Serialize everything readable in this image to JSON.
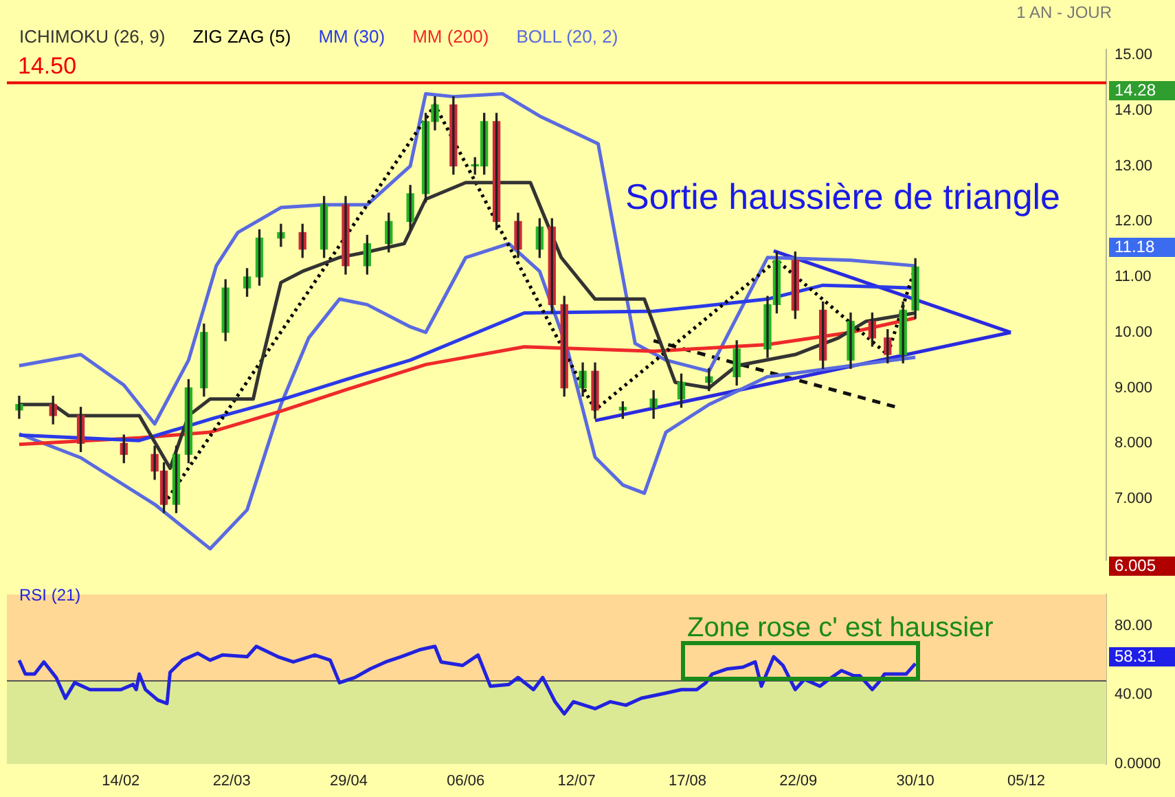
{
  "chart_data": [
    {
      "type": "candlestick",
      "subtitle": "1 AN - JOUR",
      "legend": "top left",
      "tick_labels": "y",
      "xlim": [
        "--01-08",
        "--12-31"
      ],
      "ylim": [
        5.9,
        15.1
      ],
      "yticks": [
        {
          "value": 7,
          "label": "7.000"
        },
        {
          "value": 8,
          "label": "8.000"
        },
        {
          "value": 9,
          "label": "9.000"
        },
        {
          "value": 10,
          "label": "10.00"
        },
        {
          "value": 11,
          "label": "11.00"
        },
        {
          "value": 12,
          "label": "12.00"
        },
        {
          "value": 13,
          "label": "13.00"
        },
        {
          "value": 14,
          "label": "14.00"
        },
        {
          "value": 15,
          "label": "15.00"
        }
      ],
      "x": [
        "--01-12",
        "--01-23",
        "--02-01",
        "--02-15",
        "--02-25",
        "--02-28",
        "--03-04",
        "--03-08",
        "--03-13",
        "--03-20",
        "--03-27",
        "--03-31",
        "--04-07",
        "--04-14",
        "--04-21",
        "--04-28",
        "--05-05",
        "--05-12",
        "--05-19",
        "--05-24",
        "--05-27",
        "--06-02",
        "--06-09",
        "--06-12",
        "--06-16",
        "--06-23",
        "--06-30",
        "--07-04",
        "--07-08",
        "--07-14",
        "--07-18",
        "--07-27",
        "--08-06",
        "--08-15",
        "--08-24",
        "--09-02",
        "--09-12",
        "--09-15",
        "--09-21",
        "--09-30",
        "--10-09",
        "--10-16",
        "--10-21",
        "--10-26",
        "--10-30"
      ],
      "ohlc": [
        [
          8.6,
          8.85,
          8.45,
          8.7
        ],
        [
          8.7,
          8.85,
          8.35,
          8.5
        ],
        [
          8.5,
          8.65,
          7.85,
          8.0
        ],
        [
          8.0,
          8.15,
          7.65,
          7.8
        ],
        [
          7.8,
          7.95,
          7.35,
          7.5
        ],
        [
          7.5,
          7.65,
          6.75,
          6.9
        ],
        [
          6.9,
          7.95,
          6.75,
          7.8
        ],
        [
          7.8,
          9.15,
          7.65,
          9.0
        ],
        [
          9.0,
          10.15,
          8.85,
          10.0
        ],
        [
          10.0,
          10.95,
          9.85,
          10.8
        ],
        [
          10.8,
          11.15,
          10.65,
          11.0
        ],
        [
          11.0,
          11.85,
          10.85,
          11.7
        ],
        [
          11.7,
          11.95,
          11.55,
          11.8
        ],
        [
          11.8,
          11.95,
          11.35,
          11.5
        ],
        [
          11.5,
          12.45,
          11.35,
          12.3
        ],
        [
          12.3,
          12.45,
          11.05,
          11.2
        ],
        [
          11.2,
          11.75,
          11.05,
          11.6
        ],
        [
          11.6,
          12.15,
          11.45,
          12.0
        ],
        [
          12.0,
          12.65,
          11.85,
          12.5
        ],
        [
          12.5,
          13.95,
          12.35,
          13.8
        ],
        [
          13.8,
          14.25,
          13.65,
          14.1
        ],
        [
          14.1,
          14.25,
          12.85,
          13.0
        ],
        [
          13.0,
          13.15,
          12.85,
          13.0
        ],
        [
          13.0,
          13.95,
          12.85,
          13.8
        ],
        [
          13.8,
          13.95,
          11.85,
          12.0
        ],
        [
          12.0,
          12.15,
          11.35,
          11.5
        ],
        [
          11.5,
          12.05,
          11.35,
          11.9
        ],
        [
          11.9,
          12.05,
          10.35,
          10.5
        ],
        [
          10.5,
          10.65,
          8.85,
          9.0
        ],
        [
          9.0,
          9.45,
          8.85,
          9.3
        ],
        [
          9.3,
          9.45,
          8.45,
          8.6
        ],
        [
          8.6,
          8.75,
          8.45,
          8.65
        ],
        [
          8.65,
          8.95,
          8.45,
          8.8
        ],
        [
          8.8,
          9.25,
          8.65,
          9.1
        ],
        [
          9.1,
          9.35,
          8.95,
          9.2
        ],
        [
          9.2,
          9.85,
          9.05,
          9.7
        ],
        [
          9.7,
          10.65,
          9.55,
          10.5
        ],
        [
          10.5,
          11.45,
          10.35,
          11.3
        ],
        [
          11.3,
          11.45,
          10.25,
          10.4
        ],
        [
          10.4,
          10.55,
          9.35,
          9.5
        ],
        [
          9.5,
          10.35,
          9.35,
          10.2
        ],
        [
          10.2,
          10.35,
          9.75,
          9.9
        ],
        [
          9.9,
          10.05,
          9.45,
          9.6
        ],
        [
          9.6,
          10.55,
          9.45,
          10.4
        ],
        [
          10.4,
          11.33,
          10.25,
          11.18
        ]
      ],
      "series": [
        {
          "type": "line",
          "name": "ICHIMOKU (26, 9)",
          "color": "#333333",
          "x": [
            "--01-12",
            "--01-23",
            "--01-28",
            "--02-20",
            "--03-02",
            "--03-08",
            "--03-15",
            "--03-29",
            "--03-31",
            "--04-07",
            "--04-14",
            "--04-26",
            "--05-05",
            "--05-17",
            "--05-24",
            "--06-06",
            "--06-27",
            "--07-07",
            "--07-18",
            "--08-03",
            "--08-13",
            "--08-24",
            "--09-02",
            "--09-21",
            "--10-05",
            "--10-14",
            "--10-30"
          ],
          "values": [
            8.7,
            8.7,
            8.5,
            8.5,
            7.55,
            8.5,
            8.8,
            8.8,
            9.3,
            10.9,
            11.1,
            11.35,
            11.45,
            11.6,
            12.4,
            12.7,
            12.7,
            11.35,
            10.6,
            10.6,
            9.1,
            9.0,
            9.4,
            9.6,
            9.9,
            10.2,
            10.35
          ]
        },
        {
          "type": "line",
          "name": "ZIG ZAG (5)",
          "color": "#000000",
          "line_style": "dotted",
          "x": [
            "--02-28",
            "--05-27",
            "--07-18",
            "--09-15",
            "--10-21",
            "--10-30"
          ],
          "values": [
            6.9,
            14.1,
            8.6,
            11.3,
            9.6,
            11.18
          ]
        },
        {
          "type": "line",
          "name": "MM (30)",
          "color": "#2a3ae8",
          "x": [
            "--01-12",
            "--02-20",
            "--03-16",
            "--04-08",
            "--05-01",
            "--05-19",
            "--06-25",
            "--08-06",
            "--09-12",
            "--09-30",
            "--10-30"
          ],
          "values": [
            8.15,
            8.05,
            8.45,
            8.8,
            9.2,
            9.5,
            10.35,
            10.38,
            10.6,
            10.85,
            10.8
          ]
        },
        {
          "type": "line",
          "name": "MM (200)",
          "color": "#ee2a2a",
          "x": [
            "--01-12",
            "--02-20",
            "--03-15",
            "--04-07",
            "--04-30",
            "--05-24",
            "--06-25",
            "--08-06",
            "--09-12",
            "--10-09",
            "--10-30"
          ],
          "values": [
            7.98,
            8.1,
            8.2,
            8.58,
            9.0,
            9.42,
            9.74,
            9.66,
            9.78,
            10.0,
            10.26
          ]
        },
        {
          "type": "line",
          "name": "BOLL (20, 2)",
          "color": "#5a6ae0",
          "x": [
            "--01-12",
            "--02-01",
            "--02-15",
            "--02-25",
            "--03-08",
            "--03-17",
            "--03-24",
            "--04-07",
            "--04-21",
            "--05-05",
            "--05-19",
            "--05-24",
            "--06-02",
            "--06-18",
            "--06-30",
            "--07-19",
            "--07-26",
            "--07-31",
            "--08-10",
            "--08-24",
            "--09-12",
            "--10-09",
            "--10-30"
          ],
          "values": [
            9.4,
            9.6,
            9.05,
            8.35,
            9.5,
            11.2,
            11.8,
            12.25,
            12.3,
            12.3,
            13.0,
            14.3,
            14.25,
            14.3,
            13.9,
            13.4,
            11.3,
            9.8,
            9.5,
            9.3,
            11.35,
            11.3,
            11.2
          ]
        },
        {
          "type": "line",
          "color": "#5a6ae0",
          "x": [
            "--01-12",
            "--02-01",
            "--02-25",
            "--03-15",
            "--03-27",
            "--04-07",
            "--04-16",
            "--04-26",
            "--05-05",
            "--05-19",
            "--05-24",
            "--06-06",
            "--06-20",
            "--06-30",
            "--07-09",
            "--07-18",
            "--07-27",
            "--08-03",
            "--08-10",
            "--08-24",
            "--09-12",
            "--10-09",
            "--10-30"
          ],
          "values": [
            8.17,
            7.74,
            6.9,
            6.1,
            6.8,
            8.7,
            9.9,
            10.6,
            10.5,
            10.1,
            10.0,
            11.35,
            11.6,
            11.1,
            9.7,
            7.75,
            7.25,
            7.1,
            8.2,
            8.7,
            9.2,
            9.4,
            9.55
          ]
        },
        {
          "type": "line",
          "color": "#2a2adf",
          "x": [
            "--09-14",
            "--11-30"
          ],
          "values": [
            11.47,
            10.0
          ]
        },
        {
          "type": "line",
          "color": "#2a2adf",
          "x": [
            "--07-18",
            "--11-30"
          ],
          "values": [
            8.41,
            10.0
          ]
        },
        {
          "type": "line",
          "color": "#111111",
          "line_style": "dashed",
          "x": [
            "--08-06",
            "--10-24"
          ],
          "values": [
            9.85,
            8.65
          ]
        }
      ],
      "ref_lines": [
        {
          "axis": "y",
          "value": 14.5,
          "label": "14.50",
          "color": "#ee0000"
        }
      ],
      "annotations": [
        "Sortie haussière de triangle",
        "14.28",
        "11.18",
        "6.005"
      ]
    },
    {
      "type": "line",
      "legend": "top left",
      "xlim": [
        "--01-08",
        "--12-31"
      ],
      "ylim": [
        0,
        98
      ],
      "xticks": [
        {
          "value": "--02-14",
          "label": "14/02"
        },
        {
          "value": "--03-22",
          "label": "22/03"
        },
        {
          "value": "--04-29",
          "label": "29/04"
        },
        {
          "value": "--06-06",
          "label": "06/06"
        },
        {
          "value": "--07-12",
          "label": "12/07"
        },
        {
          "value": "--08-17",
          "label": "17/08"
        },
        {
          "value": "--09-22",
          "label": "22/09"
        },
        {
          "value": "--10-30",
          "label": "30/10"
        },
        {
          "value": "--12-05",
          "label": "05/12"
        }
      ],
      "yticks": [
        {
          "value": 0,
          "label": "0.0000"
        },
        {
          "value": 40,
          "label": "40.00"
        },
        {
          "value": 80,
          "label": "80.00"
        }
      ],
      "bands": [
        {
          "axis": "y",
          "from": 48,
          "to": 98,
          "color": "#fed894"
        },
        {
          "axis": "y",
          "from": 0,
          "to": 48,
          "color": "#dbe995"
        }
      ],
      "ref_lines": [
        {
          "axis": "y",
          "value": 48,
          "color": "#555555"
        }
      ],
      "series": [
        {
          "type": "line",
          "name": "RSI (21)",
          "color": "#2222dd",
          "x": [
            "--01-12",
            "--01-14",
            "--01-17",
            "--01-20",
            "--01-24",
            "--01-27",
            "--01-30",
            "--02-04",
            "--02-14",
            "--02-18",
            "--02-19",
            "--02-20",
            "--02-22",
            "--02-26",
            "--03-01",
            "--03-02",
            "--03-06",
            "--03-11",
            "--03-15",
            "--03-19",
            "--03-27",
            "--03-30",
            "--04-06",
            "--04-11",
            "--04-18",
            "--04-23",
            "--04-26",
            "--05-01",
            "--05-06",
            "--05-11",
            "--05-16",
            "--05-22",
            "--05-27",
            "--05-29",
            "--06-05",
            "--06-10",
            "--06-14",
            "--06-20",
            "--06-23",
            "--06-28",
            "--07-01",
            "--07-05",
            "--07-08",
            "--07-11",
            "--07-18",
            "--07-23",
            "--07-28",
            "--08-02",
            "--08-10",
            "--08-15",
            "--08-20",
            "--08-23",
            "--08-25",
            "--08-30",
            "--09-04",
            "--09-08",
            "--09-10",
            "--09-14",
            "--09-17",
            "--09-21",
            "--09-24",
            "--09-29",
            "--10-02",
            "--10-06",
            "--10-10",
            "--10-12",
            "--10-16",
            "--10-18",
            "--10-20",
            "--10-27",
            "--10-30"
          ],
          "values": [
            60,
            52,
            52,
            59,
            50,
            38,
            47,
            43,
            43,
            46,
            43,
            52,
            43,
            37,
            35,
            53,
            60,
            64,
            60,
            63,
            62,
            68,
            62,
            59,
            63,
            60,
            47,
            50,
            55,
            59,
            62,
            66,
            68,
            59,
            57,
            63,
            45,
            46,
            50,
            43,
            50,
            36,
            29,
            36,
            32,
            36,
            34,
            38,
            41,
            43,
            43,
            47,
            52,
            55,
            56,
            59,
            45,
            62,
            57,
            43,
            49,
            45,
            49,
            54,
            51,
            51,
            43,
            47,
            52,
            52,
            58
          ]
        }
      ],
      "annotations": [
        "Zone rose c' est haussier",
        "58.31"
      ]
    }
  ]
}
